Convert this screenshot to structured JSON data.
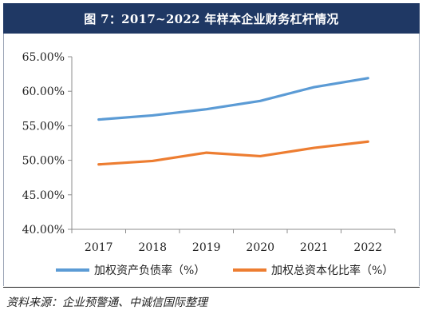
{
  "title": "图 7：2017~2022 年样本企业财务杠杆情况",
  "source": "资料来源：企业预警通、中诚信国际整理",
  "colors": {
    "title_bg": "#1f3864",
    "series_blue": "#5b9bd5",
    "series_orange": "#ed7d31"
  },
  "chart_data": {
    "type": "line",
    "title": "",
    "categories": [
      "2017",
      "2018",
      "2019",
      "2020",
      "2021",
      "2022"
    ],
    "series": [
      {
        "name": "加权资产负债率（%）",
        "color": "#5b9bd5",
        "values": [
          55.9,
          56.5,
          57.4,
          58.6,
          60.6,
          61.9
        ]
      },
      {
        "name": "加权总资本化比率（%）",
        "color": "#ed7d31",
        "values": [
          49.4,
          49.9,
          51.1,
          50.6,
          51.8,
          52.7
        ]
      }
    ],
    "ylim": [
      40,
      65
    ],
    "yticks": [
      "40.00%",
      "45.00%",
      "50.00%",
      "55.00%",
      "60.00%",
      "65.00%"
    ],
    "xlabel": "",
    "ylabel": "",
    "grid": false,
    "legend_position": "bottom"
  }
}
